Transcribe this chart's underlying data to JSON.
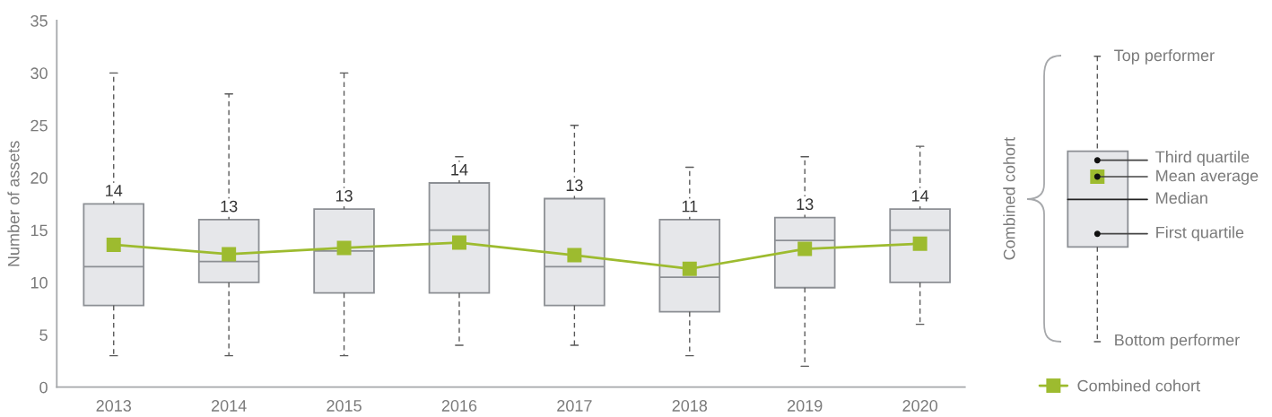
{
  "chart_data": {
    "type": "box",
    "ylabel": "Number of assets",
    "categories": [
      "2013",
      "2014",
      "2015",
      "2016",
      "2017",
      "2018",
      "2019",
      "2020"
    ],
    "series": [
      {
        "type": "box",
        "color": "#e6e7ea",
        "boxes": [
          {
            "low": 3,
            "q1": 7.8,
            "median": 11.5,
            "q3": 17.5,
            "high": 30
          },
          {
            "low": 3,
            "q1": 10,
            "median": 12,
            "q3": 16,
            "high": 28
          },
          {
            "low": 3,
            "q1": 9,
            "median": 13,
            "q3": 17,
            "high": 30
          },
          {
            "low": 4,
            "q1": 9,
            "median": 15,
            "q3": 19.5,
            "high": 22
          },
          {
            "low": 4,
            "q1": 7.8,
            "median": 11.5,
            "q3": 18,
            "high": 25
          },
          {
            "low": 3,
            "q1": 7.2,
            "median": 10.5,
            "q3": 16,
            "high": 21
          },
          {
            "low": 2,
            "q1": 9.5,
            "median": 14,
            "q3": 16.2,
            "high": 22
          },
          {
            "low": 6,
            "q1": 10,
            "median": 15,
            "q3": 17,
            "high": 23
          }
        ]
      },
      {
        "type": "line",
        "name": "Combined cohort",
        "color": "#9dbb2f",
        "marker": "square",
        "values": [
          13.6,
          12.7,
          13.3,
          13.8,
          12.6,
          11.3,
          13.2,
          13.7
        ]
      }
    ],
    "ylim": [
      0,
      35
    ],
    "yticks": [
      0,
      5,
      10,
      15,
      20,
      25,
      30,
      35
    ],
    "grid": false,
    "legend": "bottom right",
    "annotations": [
      {
        "text": "14",
        "x": "2013",
        "y": 17.5
      },
      {
        "text": "13",
        "x": "2014",
        "y": 16
      },
      {
        "text": "13",
        "x": "2015",
        "y": 17
      },
      {
        "text": "14",
        "x": "2016",
        "y": 19.5
      },
      {
        "text": "13",
        "x": "2017",
        "y": 18
      },
      {
        "text": "11",
        "x": "2018",
        "y": 16
      },
      {
        "text": "13",
        "x": "2019",
        "y": 16.2
      },
      {
        "text": "14",
        "x": "2020",
        "y": 17
      },
      "Combined cohort",
      "Top performer",
      "Third quartile",
      "Mean average",
      "Median",
      "First quartile",
      "Bottom performer"
    ]
  }
}
